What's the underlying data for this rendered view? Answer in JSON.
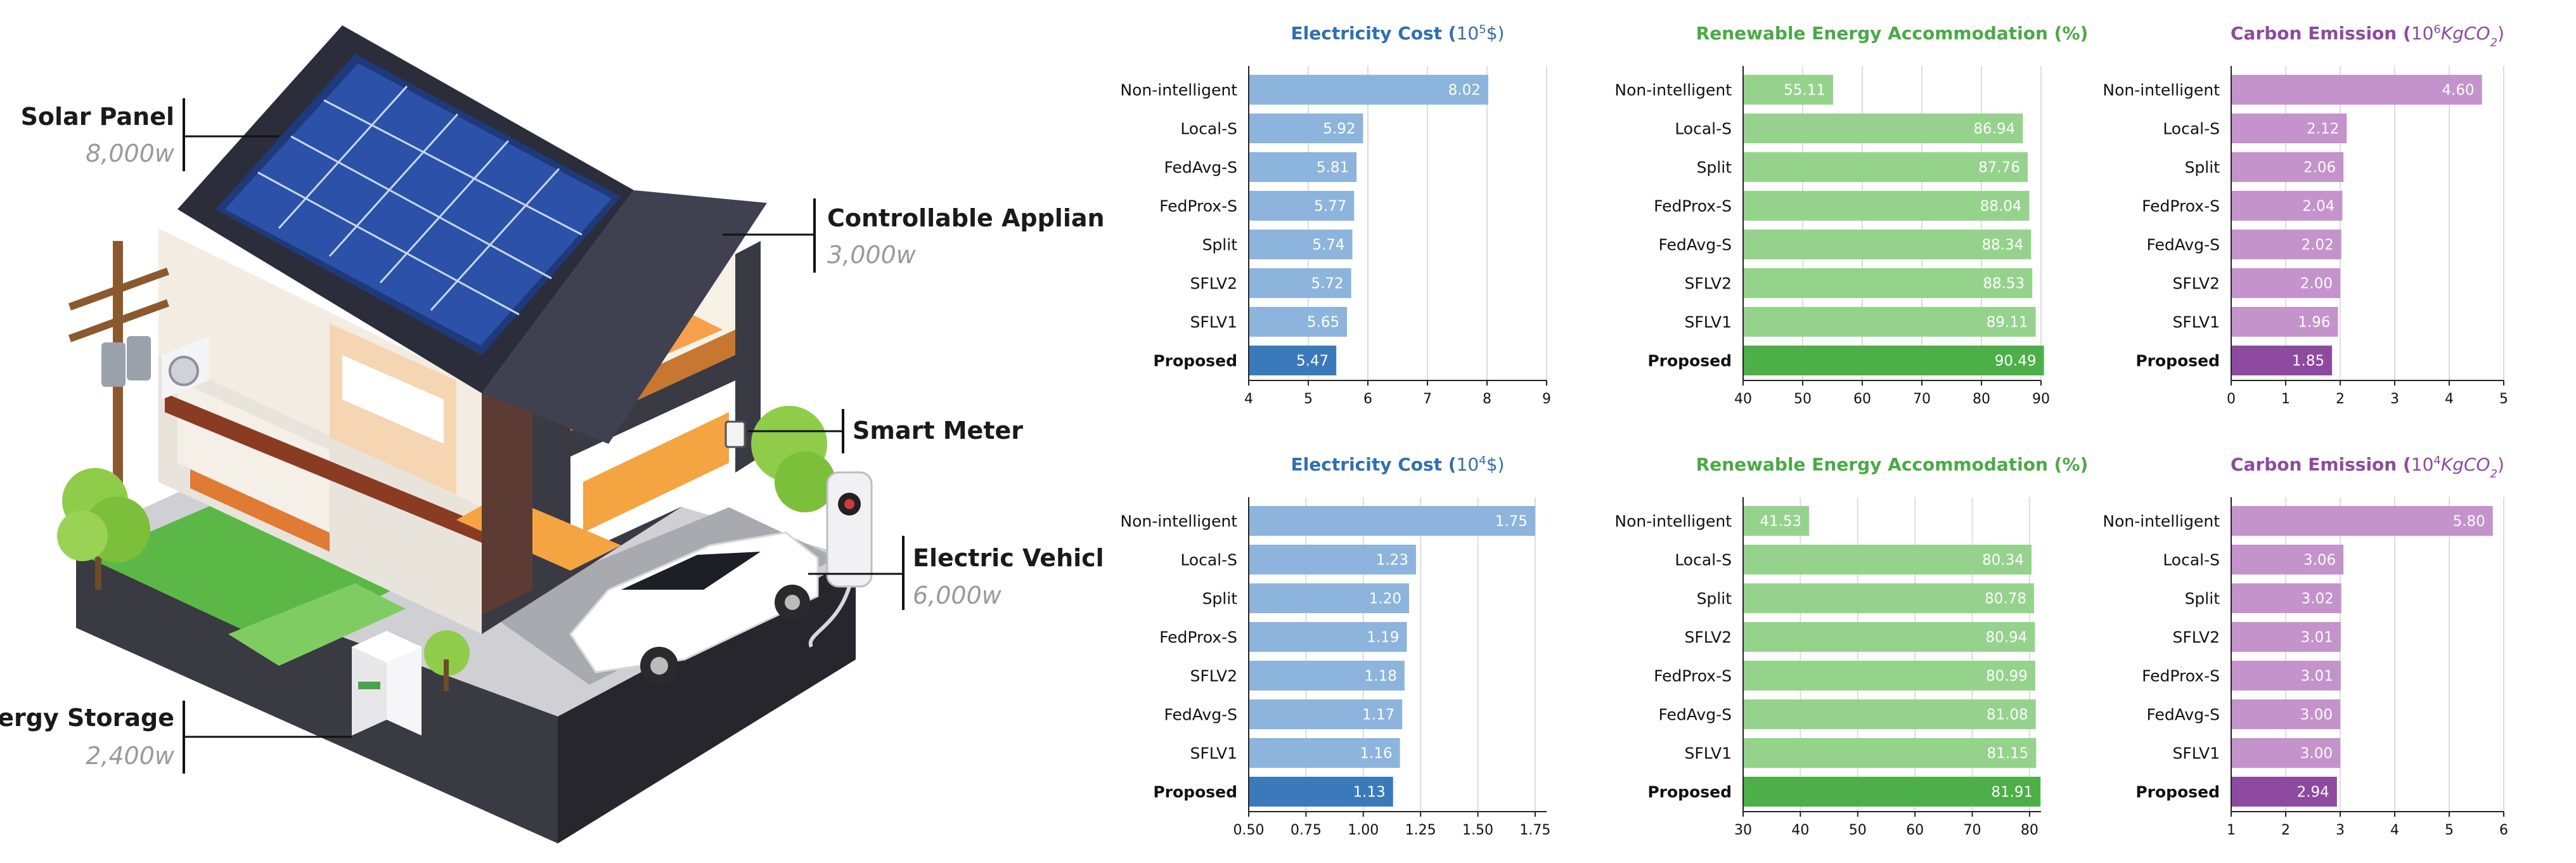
{
  "illustration": {
    "callouts": [
      {
        "id": "solar",
        "title": "Solar Panel",
        "sub": "8,000w"
      },
      {
        "id": "appliance",
        "title": "Controllable Appliance",
        "sub": "3,000w"
      },
      {
        "id": "meter",
        "title": "Smart Meter",
        "sub": ""
      },
      {
        "id": "ev",
        "title": "Electric Vehicle",
        "sub": "6,000w"
      },
      {
        "id": "storage",
        "title": "Energy Storage",
        "sub": "2,400w"
      }
    ]
  },
  "chart_data": [
    {
      "type": "bar",
      "orientation": "horizontal",
      "title_main": "Electricity Cost (",
      "title_sup_base": "10",
      "title_sup": "5",
      "title_tail": "$)",
      "color": "#2f6fb0",
      "bar_color": "#8db4dc",
      "highlight_color": "#3a7abb",
      "categories": [
        "Non-intelligent",
        "Local-S",
        "FedAvg-S",
        "FedProx-S",
        "Split",
        "SFLV2",
        "SFLV1",
        "Proposed"
      ],
      "values": [
        8.02,
        5.92,
        5.81,
        5.77,
        5.74,
        5.72,
        5.65,
        5.47
      ],
      "value_labels": [
        "8.02",
        "5.92",
        "5.81",
        "5.77",
        "5.74",
        "5.72",
        "5.65",
        "5.47"
      ],
      "xlim": [
        4,
        9
      ],
      "xticks": [
        4,
        5,
        6,
        7,
        8,
        9
      ],
      "xtick_labels": [
        "4",
        "5",
        "6",
        "7",
        "8",
        "9"
      ],
      "grid": true
    },
    {
      "type": "bar",
      "orientation": "horizontal",
      "title_main": "Renewable Energy Accommodation (%)",
      "title_sup_base": "",
      "title_sup": "",
      "title_tail": "",
      "color": "#4aaa45",
      "bar_color": "#95d38c",
      "highlight_color": "#4caf47",
      "categories": [
        "Non-intelligent",
        "Local-S",
        "Split",
        "FedProx-S",
        "FedAvg-S",
        "SFLV2",
        "SFLV1",
        "Proposed"
      ],
      "values": [
        55.11,
        86.94,
        87.76,
        88.04,
        88.34,
        88.53,
        89.11,
        90.49
      ],
      "value_labels": [
        "55.11",
        "86.94",
        "87.76",
        "88.04",
        "88.34",
        "88.53",
        "89.11",
        "90.49"
      ],
      "xlim": [
        40,
        90
      ],
      "xticks": [
        40,
        50,
        60,
        70,
        80,
        90
      ],
      "xtick_labels": [
        "40",
        "50",
        "60",
        "70",
        "80",
        "90"
      ],
      "grid": true
    },
    {
      "type": "bar",
      "orientation": "horizontal",
      "title_main": "Carbon Emission (",
      "title_sup_base": "10",
      "title_sup": "6",
      "title_tail": "KgCO",
      "title_sub": "2",
      "title_end": ")",
      "color": "#8e4aa0",
      "bar_color": "#c493cc",
      "highlight_color": "#8e4aa0",
      "categories": [
        "Non-intelligent",
        "Local-S",
        "Split",
        "FedProx-S",
        "FedAvg-S",
        "SFLV2",
        "SFLV1",
        "Proposed"
      ],
      "values": [
        4.6,
        2.12,
        2.06,
        2.04,
        2.02,
        2.0,
        1.96,
        1.85
      ],
      "value_labels": [
        "4.60",
        "2.12",
        "2.06",
        "2.04",
        "2.02",
        "2.00",
        "1.96",
        "1.85"
      ],
      "xlim": [
        0,
        5
      ],
      "xticks": [
        0,
        1,
        2,
        3,
        4,
        5
      ],
      "xtick_labels": [
        "0",
        "1",
        "2",
        "3",
        "4",
        "5"
      ],
      "grid": true
    },
    {
      "type": "bar",
      "orientation": "horizontal",
      "title_main": "Electricity Cost (",
      "title_sup_base": "10",
      "title_sup": "4",
      "title_tail": "$)",
      "color": "#2f6fb0",
      "bar_color": "#8db4dc",
      "highlight_color": "#3a7abb",
      "categories": [
        "Non-intelligent",
        "Local-S",
        "Split",
        "FedProx-S",
        "SFLV2",
        "FedAvg-S",
        "SFLV1",
        "Proposed"
      ],
      "values": [
        1.75,
        1.23,
        1.2,
        1.19,
        1.18,
        1.17,
        1.16,
        1.13
      ],
      "value_labels": [
        "1.75",
        "1.23",
        "1.20",
        "1.19",
        "1.18",
        "1.17",
        "1.16",
        "1.13"
      ],
      "xlim": [
        0.5,
        1.8
      ],
      "xticks": [
        0.5,
        0.75,
        1.0,
        1.25,
        1.5,
        1.75
      ],
      "xtick_labels": [
        "0.50",
        "0.75",
        "1.00",
        "1.25",
        "1.50",
        "1.75"
      ],
      "grid": true
    },
    {
      "type": "bar",
      "orientation": "horizontal",
      "title_main": "Renewable Energy Accommodation (%)",
      "title_sup_base": "",
      "title_sup": "",
      "title_tail": "",
      "color": "#4aaa45",
      "bar_color": "#95d38c",
      "highlight_color": "#4caf47",
      "categories": [
        "Non-intelligent",
        "Local-S",
        "Split",
        "SFLV2",
        "FedProx-S",
        "FedAvg-S",
        "SFLV1",
        "Proposed"
      ],
      "values": [
        41.53,
        80.34,
        80.78,
        80.94,
        80.99,
        81.08,
        81.15,
        81.91
      ],
      "value_labels": [
        "41.53",
        "80.34",
        "80.78",
        "80.94",
        "80.99",
        "81.08",
        "81.15",
        "81.91"
      ],
      "xlim": [
        30,
        82
      ],
      "xticks": [
        30,
        40,
        50,
        60,
        70,
        80
      ],
      "xtick_labels": [
        "30",
        "40",
        "50",
        "60",
        "70",
        "80"
      ],
      "grid": true
    },
    {
      "type": "bar",
      "orientation": "horizontal",
      "title_main": "Carbon Emission (",
      "title_sup_base": "10",
      "title_sup": "4",
      "title_tail": "KgCO",
      "title_sub": "2",
      "title_end": ")",
      "color": "#8e4aa0",
      "bar_color": "#c493cc",
      "highlight_color": "#8e4aa0",
      "categories": [
        "Non-intelligent",
        "Local-S",
        "Split",
        "SFLV2",
        "FedProx-S",
        "FedAvg-S",
        "SFLV1",
        "Proposed"
      ],
      "values": [
        5.8,
        3.06,
        3.02,
        3.01,
        3.01,
        3.0,
        3.0,
        2.94
      ],
      "value_labels": [
        "5.80",
        "3.06",
        "3.02",
        "3.01",
        "3.01",
        "3.00",
        "3.00",
        "2.94"
      ],
      "xlim": [
        1,
        6
      ],
      "xticks": [
        1,
        2,
        3,
        4,
        5,
        6
      ],
      "xtick_labels": [
        "1",
        "2",
        "3",
        "4",
        "5",
        "6"
      ],
      "grid": true
    }
  ]
}
